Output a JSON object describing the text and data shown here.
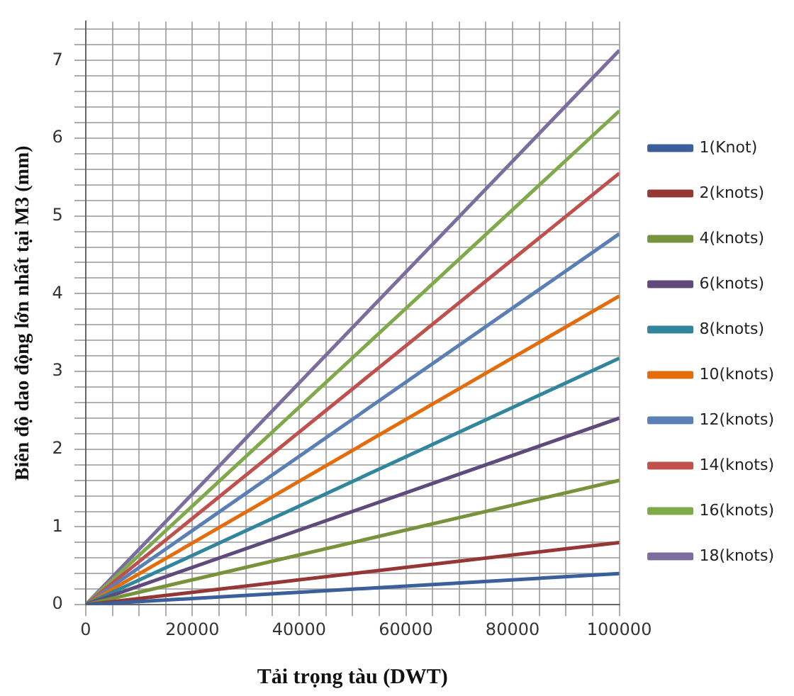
{
  "chart_data": {
    "type": "line",
    "xlabel": "Tải trọng tàu (DWT)",
    "ylabel": "Biên độ dao động lớn nhất tại M3 (mm)",
    "x": [
      0,
      100000
    ],
    "series": [
      {
        "name": "1(Knot)",
        "color": "#3b5f9a",
        "values": [
          0,
          0.4
        ]
      },
      {
        "name": "2(knots)",
        "color": "#953735",
        "values": [
          0,
          0.8
        ]
      },
      {
        "name": "4(knots)",
        "color": "#77933c",
        "values": [
          0,
          1.6
        ]
      },
      {
        "name": "6(knots)",
        "color": "#604a7b",
        "values": [
          0,
          2.4
        ]
      },
      {
        "name": "8(knots)",
        "color": "#31859c",
        "values": [
          0,
          3.17
        ]
      },
      {
        "name": "10(knots)",
        "color": "#e46c0a",
        "values": [
          0,
          3.97
        ]
      },
      {
        "name": "12(knots)",
        "color": "#5a7fb5",
        "values": [
          0,
          4.77
        ]
      },
      {
        "name": "14(knots)",
        "color": "#c0504d",
        "values": [
          0,
          5.55
        ]
      },
      {
        "name": "16(knots)",
        "color": "#7faa4a",
        "values": [
          0,
          6.35
        ]
      },
      {
        "name": "18(knots)",
        "color": "#7b6e9e",
        "values": [
          0,
          7.13
        ]
      }
    ],
    "xlim": [
      0,
      100000
    ],
    "xticks": [
      0,
      {
        "value": 5000,
        "label": null
      },
      20000,
      {
        "value": 10000,
        "label": null
      },
      {
        "value": 15000,
        "label": null
      },
      {
        "value": 25000,
        "label": null
      },
      {
        "value": 30000,
        "label": null
      },
      {
        "value": 35000,
        "label": null
      },
      40000,
      {
        "value": 45000,
        "label": null
      },
      {
        "value": 50000,
        "label": null
      },
      {
        "value": 55000,
        "label": null
      },
      60000,
      {
        "value": 65000,
        "label": null
      },
      {
        "value": 70000,
        "label": null
      },
      {
        "value": 75000,
        "label": null
      },
      80000,
      {
        "value": 85000,
        "label": null
      },
      {
        "value": 90000,
        "label": null
      },
      {
        "value": 95000,
        "label": null
      },
      100000
    ],
    "ylim": [
      0,
      7.5
    ],
    "yticks": [
      0,
      {
        "value": 0.2,
        "label": null
      },
      {
        "value": 0.4,
        "label": null
      },
      {
        "value": 0.6,
        "label": null
      },
      {
        "value": 0.8,
        "label": null
      },
      1,
      {
        "value": 1.2,
        "label": null
      },
      {
        "value": 1.4,
        "label": null
      },
      {
        "value": 1.6,
        "label": null
      },
      {
        "value": 1.8,
        "label": null
      },
      2,
      {
        "value": 2.2,
        "label": null
      },
      {
        "value": 2.4,
        "label": null
      },
      {
        "value": 2.6,
        "label": null
      },
      {
        "value": 2.8,
        "label": null
      },
      3,
      {
        "value": 3.2,
        "label": null
      },
      {
        "value": 3.4,
        "label": null
      },
      {
        "value": 3.6,
        "label": null
      },
      {
        "value": 3.8,
        "label": null
      },
      4,
      {
        "value": 4.2,
        "label": null
      },
      {
        "value": 4.4,
        "label": null
      },
      {
        "value": 4.6,
        "label": null
      },
      {
        "value": 4.8,
        "label": null
      },
      5,
      {
        "value": 5.2,
        "label": null
      },
      {
        "value": 5.4,
        "label": null
      },
      {
        "value": 5.6,
        "label": null
      },
      {
        "value": 5.8,
        "label": null
      },
      6,
      {
        "value": 6.2,
        "label": null
      },
      {
        "value": 6.4,
        "label": null
      },
      {
        "value": 6.6,
        "label": null
      },
      {
        "value": 6.8,
        "label": null
      },
      7,
      {
        "value": 7.2,
        "label": null
      },
      {
        "value": 7.4,
        "label": null
      }
    ],
    "grid": true,
    "legend": "right",
    "marker": "none",
    "line_style": "solid"
  }
}
